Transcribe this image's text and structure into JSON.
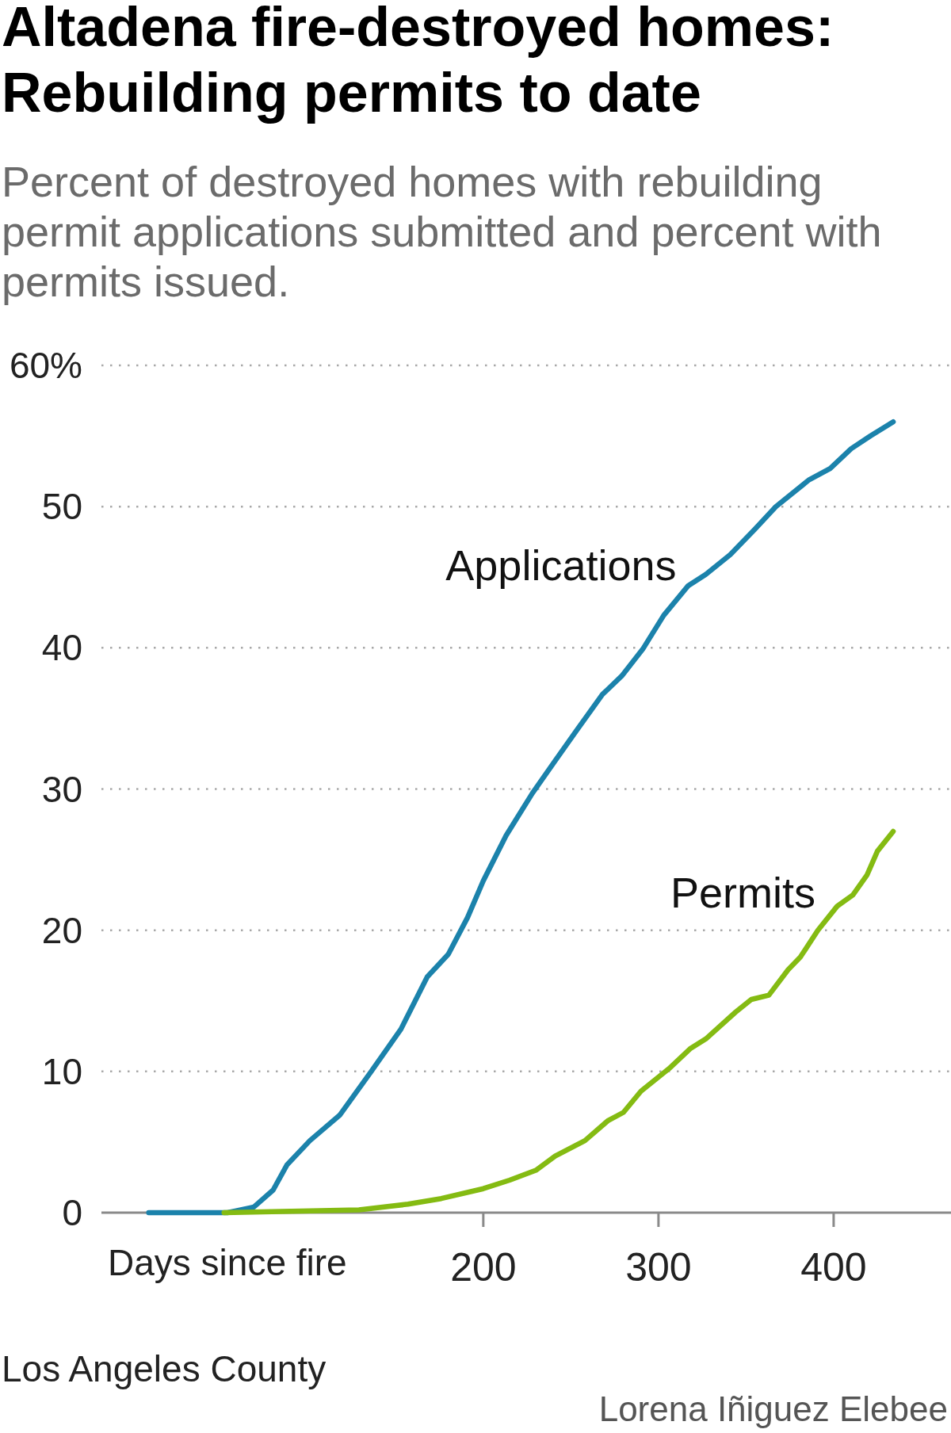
{
  "chart_data": {
    "type": "line",
    "title": "Altadena fire-destroyed homes: Rebuilding permits to date",
    "subtitle": "Percent of destroyed homes with rebuilding permit applications submitted and percent with permits issued.",
    "xlabel": "Days since fire",
    "annotations": [
      "Los Angeles County",
      "Lorena Iñiguez Elebee"
    ],
    "xlim": [
      -18,
      467
    ],
    "xticks": [
      200,
      300,
      400
    ],
    "ylim": [
      0,
      60
    ],
    "yticks": [
      0,
      10,
      20,
      30,
      40,
      50,
      {
        "value": 60,
        "label": "60%"
      }
    ],
    "grid": "y",
    "series": [
      {
        "name": "Applications",
        "color": "#1b82ab",
        "x": [
          9,
          54,
          69,
          80,
          88,
          101,
          118,
          136,
          153,
          168,
          180,
          191,
          200,
          213,
          228,
          241,
          253,
          268,
          279,
          291,
          303,
          317,
          327,
          341,
          355,
          367,
          386,
          398,
          410,
          421,
          434
        ],
        "values": [
          0,
          0,
          0.4,
          1.6,
          3.4,
          5.1,
          6.9,
          10.0,
          13.0,
          16.7,
          18.3,
          20.9,
          23.5,
          26.7,
          29.7,
          32.0,
          34.1,
          36.7,
          38.0,
          39.9,
          42.3,
          44.4,
          45.2,
          46.6,
          48.4,
          50.0,
          51.9,
          52.7,
          54.1,
          55.0,
          56.0
        ]
      },
      {
        "name": "Permits",
        "color": "#84bb12",
        "x": [
          52,
          129,
          157,
          176,
          200,
          215,
          230,
          241,
          258,
          271,
          280,
          290,
          306,
          318,
          327,
          344,
          353,
          363,
          374,
          381,
          391,
          402,
          411,
          419,
          425,
          434
        ],
        "values": [
          0,
          0.2,
          0.6,
          1.0,
          1.7,
          2.3,
          3.0,
          4.0,
          5.1,
          6.5,
          7.1,
          8.6,
          10.2,
          11.6,
          12.3,
          14.2,
          15.1,
          15.4,
          17.2,
          18.1,
          20.0,
          21.7,
          22.5,
          23.9,
          25.6,
          27.0
        ]
      }
    ]
  }
}
